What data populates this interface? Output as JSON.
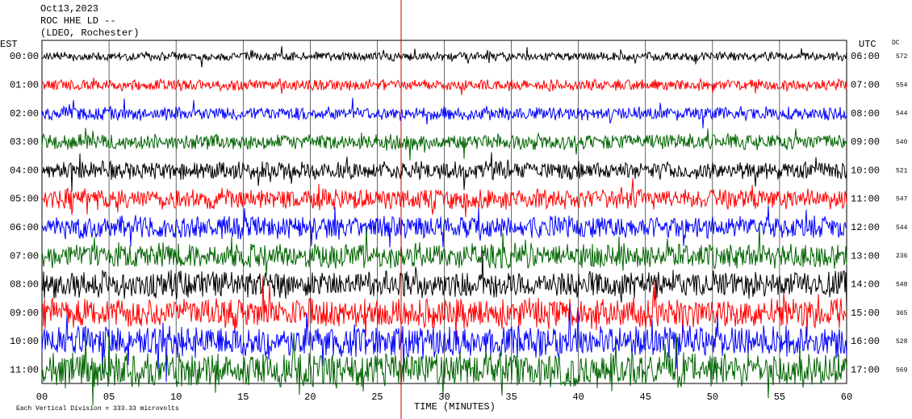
{
  "header": {
    "date": "Oct13,2023",
    "station": "ROC HHE LD --",
    "network": "(LDEO, Rochester)"
  },
  "left_label": "EST",
  "right_label": "UTC",
  "dc_label": "DC",
  "rows": [
    {
      "est": "00:00",
      "utc": "06:00",
      "dc": "572",
      "color": "#000000"
    },
    {
      "est": "01:00",
      "utc": "07:00",
      "dc": "554",
      "color": "#ff0000"
    },
    {
      "est": "02:00",
      "utc": "08:00",
      "dc": "544",
      "color": "#0000ff"
    },
    {
      "est": "03:00",
      "utc": "09:00",
      "dc": "540",
      "color": "#006400"
    },
    {
      "est": "04:00",
      "utc": "10:00",
      "dc": "521",
      "color": "#000000"
    },
    {
      "est": "05:00",
      "utc": "11:00",
      "dc": "547",
      "color": "#ff0000"
    },
    {
      "est": "06:00",
      "utc": "12:00",
      "dc": "544",
      "color": "#0000ff"
    },
    {
      "est": "07:00",
      "utc": "13:00",
      "dc": "236",
      "color": "#006400"
    },
    {
      "est": "08:00",
      "utc": "14:00",
      "dc": "548",
      "color": "#000000"
    },
    {
      "est": "09:00",
      "utc": "15:00",
      "dc": "365",
      "color": "#ff0000"
    },
    {
      "est": "10:00",
      "utc": "16:00",
      "dc": "528",
      "color": "#0000ff"
    },
    {
      "est": "11:00",
      "utc": "17:00",
      "dc": "569",
      "color": "#006400"
    }
  ],
  "x_axis": {
    "label": "TIME (MINUTES)",
    "ticks": [
      "00",
      "05",
      "10",
      "15",
      "20",
      "25",
      "30",
      "35",
      "40",
      "45",
      "50",
      "55",
      "60"
    ]
  },
  "footer": "Each Vertical Division = 333.33 microvolts"
}
